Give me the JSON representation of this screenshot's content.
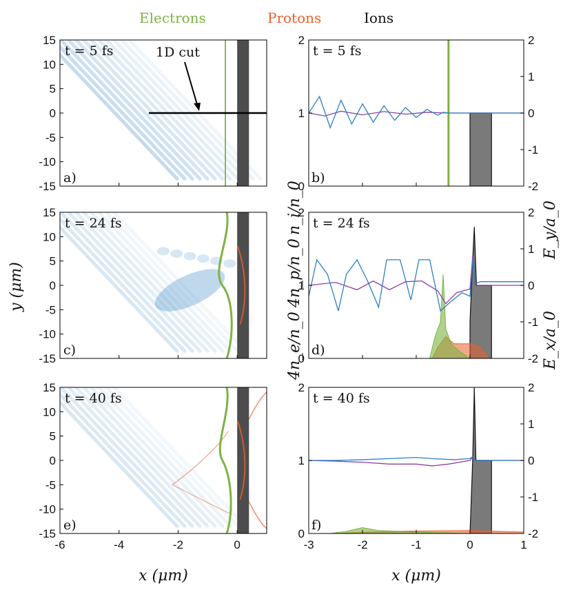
{
  "legend": {
    "electrons": {
      "label": "Electrons",
      "color": "#7cb342"
    },
    "protons": {
      "label": "Protons",
      "color": "#e8602c"
    },
    "ions": {
      "label": "Ions",
      "color": "#111111"
    }
  },
  "colors": {
    "ey": "#2b7fc4",
    "ex": "#8e3fa5",
    "electrons": "#7cb342",
    "protons": "#e8602c",
    "ions": "#555555",
    "field_map": "#4a90c8"
  },
  "annotation": {
    "text": "1D cut"
  },
  "axes": {
    "left_xlabel": "x (μm)",
    "left_ylabel": "y (μm)",
    "right_xlabel": "x (μm)",
    "right_left_ylabel": {
      "electrons": "4n_e/n_0",
      "protons": "4n_p/n_0",
      "ions": "n_i/n_0"
    },
    "right_right_ylabel": {
      "ey": "E_y/a_0",
      "ex": "E_x/a_0"
    }
  },
  "chart_data": [
    {
      "panel": "a)",
      "type": "heatmap",
      "time_label": "t = 5 fs",
      "xlim": [
        -6,
        1
      ],
      "ylim": [
        -15,
        15
      ],
      "xticks": [
        -6,
        -4,
        -2,
        0
      ],
      "yticks": [
        15,
        10,
        5,
        0,
        -5,
        -10,
        -15
      ],
      "electron_front_x": -0.4,
      "target_x": [
        0,
        0.4
      ]
    },
    {
      "panel": "b)",
      "type": "line",
      "time_label": "t = 5 fs",
      "xlim": [
        -3,
        1
      ],
      "ylim_left": [
        0,
        2
      ],
      "ylim_right": [
        -2,
        2
      ],
      "xticks": [
        -3,
        -2,
        -1,
        0,
        1
      ],
      "yticks_left": [
        0,
        1,
        2
      ],
      "yticks_right": [
        2,
        1,
        0,
        -1,
        -2
      ],
      "series": [
        {
          "name": "E_y/a_0",
          "x": [
            -3.0,
            -2.8,
            -2.6,
            -2.4,
            -2.2,
            -2.0,
            -1.8,
            -1.6,
            -1.4,
            -1.2,
            -1.0,
            -0.8,
            -0.6,
            -0.5,
            -0.4,
            1.0
          ],
          "y": [
            0.0,
            0.45,
            -0.4,
            0.35,
            -0.3,
            0.25,
            -0.25,
            0.2,
            -0.2,
            0.15,
            -0.12,
            0.1,
            -0.06,
            0.02,
            0.0,
            0.0
          ]
        },
        {
          "name": "E_x/a_0",
          "x": [
            -3.0,
            -2.7,
            -2.4,
            -2.0,
            -1.6,
            -1.2,
            -0.8,
            -0.4,
            1.0
          ],
          "y": [
            0.0,
            -0.08,
            0.05,
            -0.05,
            0.04,
            -0.03,
            0.02,
            0.0,
            0.0
          ]
        },
        {
          "name": "4n_e/n_0",
          "x": [
            -0.41,
            -0.4,
            -0.39
          ],
          "y": [
            0,
            2.0,
            0
          ]
        },
        {
          "name": "n_i/n_0",
          "x": [
            0.0,
            0.4
          ],
          "y": [
            1.0,
            1.0
          ]
        }
      ]
    },
    {
      "panel": "c)",
      "type": "heatmap",
      "time_label": "t = 24 fs",
      "xlim": [
        -6,
        1
      ],
      "ylim": [
        -15,
        15
      ],
      "xticks": [
        -6,
        -4,
        -2,
        0
      ],
      "yticks": [
        15,
        10,
        5,
        0,
        -5,
        -10,
        -15
      ],
      "target_x": [
        0,
        0.4
      ]
    },
    {
      "panel": "d)",
      "type": "line",
      "time_label": "t = 24 fs",
      "xlim": [
        -3,
        1
      ],
      "ylim_left": [
        0,
        2
      ],
      "ylim_right": [
        -2,
        2
      ],
      "xticks": [
        -3,
        -2,
        -1,
        0,
        1
      ],
      "yticks_left": [
        0,
        1,
        2
      ],
      "yticks_right": [
        2,
        1,
        0,
        -1,
        -2
      ],
      "series": [
        {
          "name": "E_y/a_0",
          "x": [
            -3.0,
            -2.85,
            -2.65,
            -2.45,
            -2.3,
            -2.1,
            -1.9,
            -1.7,
            -1.55,
            -1.3,
            -1.1,
            -0.95,
            -0.75,
            -0.55,
            -0.4,
            -0.15,
            0.0,
            0.05,
            0.1,
            0.2,
            1.0
          ],
          "y": [
            -0.3,
            0.7,
            0.3,
            -0.7,
            0.3,
            0.7,
            0.1,
            -0.6,
            0.7,
            0.7,
            -0.4,
            0.7,
            0.7,
            -0.7,
            -0.5,
            -0.2,
            -0.3,
            0.7,
            0.05,
            0.1,
            0.1
          ]
        },
        {
          "name": "E_x/a_0",
          "x": [
            -3.0,
            -2.5,
            -2.1,
            -1.8,
            -1.5,
            -1.2,
            -0.9,
            -0.6,
            -0.45,
            -0.25,
            0.0,
            0.05,
            0.1,
            0.2,
            1.0
          ],
          "y": [
            0.0,
            0.08,
            -0.12,
            0.12,
            -0.12,
            0.1,
            0.12,
            -0.15,
            -0.5,
            -0.2,
            -0.1,
            0.8,
            0.0,
            0.0,
            0.0
          ]
        },
        {
          "name": "4n_e/n_0",
          "x": [
            -0.75,
            -0.65,
            -0.55,
            -0.5,
            -0.45,
            -0.35,
            -0.2,
            0.0
          ],
          "y": [
            0.0,
            0.3,
            0.5,
            1.15,
            0.4,
            0.2,
            0.1,
            0.0
          ]
        },
        {
          "name": "4n_p/n_0",
          "x": [
            -0.7,
            -0.6,
            -0.45,
            -0.3,
            0.0,
            0.2,
            0.35
          ],
          "y": [
            0.0,
            0.15,
            0.3,
            0.2,
            0.2,
            0.15,
            0.0
          ]
        },
        {
          "name": "n_i/n_0",
          "x": [
            0.0,
            0.04,
            0.08,
            0.12,
            0.4
          ],
          "y": [
            0.5,
            1.2,
            1.8,
            1.0,
            1.0
          ]
        }
      ]
    },
    {
      "panel": "e)",
      "type": "heatmap",
      "time_label": "t = 40 fs",
      "xlim": [
        -6,
        1
      ],
      "ylim": [
        -15,
        15
      ],
      "xticks": [
        -6,
        -4,
        -2,
        0
      ],
      "yticks": [
        15,
        10,
        5,
        0,
        -5,
        -10,
        -15
      ],
      "target_x": [
        0,
        0.4
      ]
    },
    {
      "panel": "f)",
      "type": "line",
      "time_label": "t = 40 fs",
      "xlim": [
        -3,
        1
      ],
      "ylim_left": [
        0,
        2
      ],
      "ylim_right": [
        -2,
        2
      ],
      "xticks": [
        -3,
        -2,
        -1,
        0,
        1
      ],
      "yticks_left": [
        0,
        1,
        2
      ],
      "yticks_right": [
        2,
        1,
        0,
        -1,
        -2
      ],
      "series": [
        {
          "name": "E_y/a_0",
          "x": [
            -3.0,
            -2.5,
            -2.0,
            -1.5,
            -1.0,
            -0.7,
            -0.3,
            0.0,
            0.05,
            0.1,
            1.0
          ],
          "y": [
            0.0,
            0.0,
            0.02,
            0.05,
            0.08,
            0.05,
            0.02,
            0.05,
            0.1,
            0.0,
            0.0
          ]
        },
        {
          "name": "E_x/a_0",
          "x": [
            -3.0,
            -2.5,
            -2.0,
            -1.5,
            -1.0,
            -0.7,
            -0.4,
            0.0,
            0.05,
            0.1,
            1.0
          ],
          "y": [
            0.0,
            -0.02,
            -0.05,
            -0.1,
            -0.1,
            -0.15,
            -0.1,
            0.0,
            0.1,
            0.0,
            0.0
          ]
        },
        {
          "name": "4n_e/n_0",
          "x": [
            -2.6,
            -2.3,
            -2.0,
            -1.7,
            -1.0,
            0.0
          ],
          "y": [
            0.0,
            0.03,
            0.08,
            0.04,
            0.02,
            0.0
          ]
        },
        {
          "name": "4n_p/n_0",
          "x": [
            -2.5,
            -1.5,
            0.0,
            0.5,
            1.0
          ],
          "y": [
            0.0,
            0.03,
            0.04,
            0.03,
            0.02
          ]
        },
        {
          "name": "n_i/n_0",
          "x": [
            0.0,
            0.05,
            0.08,
            0.11,
            0.4
          ],
          "y": [
            0.0,
            1.0,
            2.0,
            1.0,
            1.0
          ]
        }
      ]
    }
  ]
}
